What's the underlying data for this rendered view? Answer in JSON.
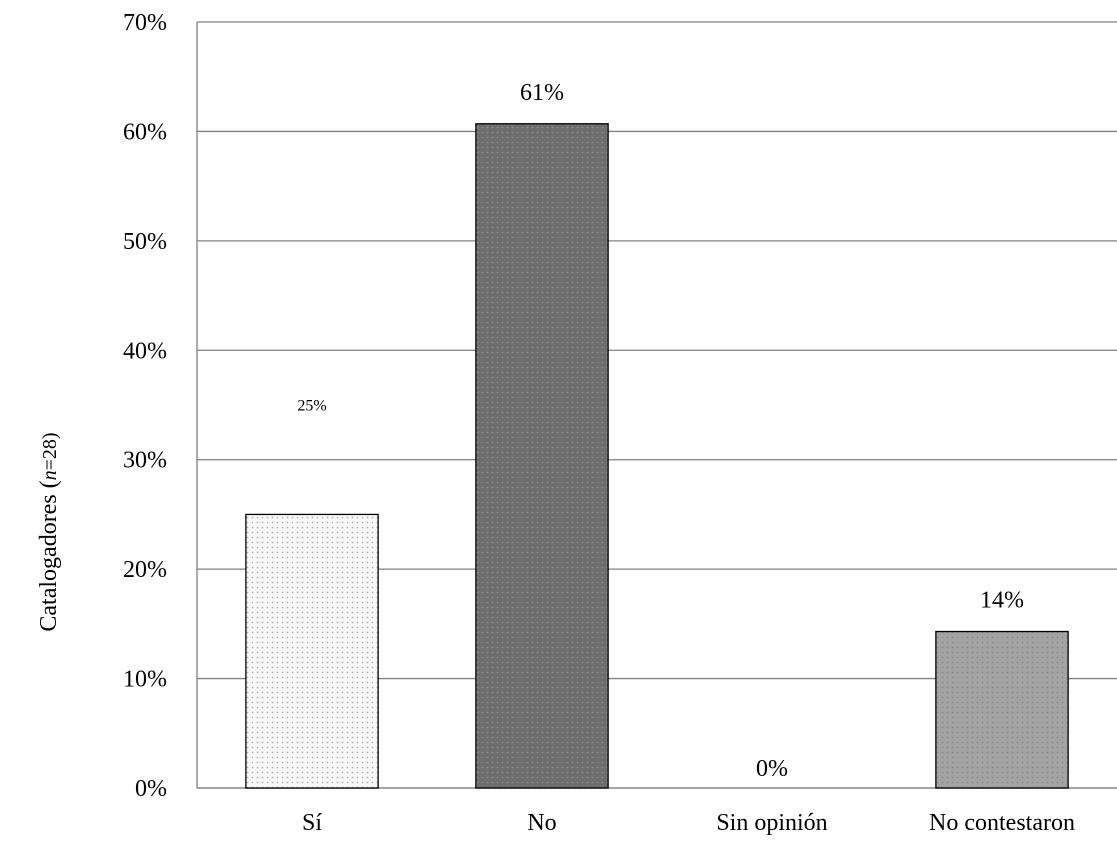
{
  "chart_data": {
    "type": "bar",
    "title": "",
    "xlabel": "",
    "ylabel": "Catalogadores (",
    "ylabel_italic": "n",
    "ylabel_suffix": "=28)",
    "categories": [
      "Sí",
      "No",
      "Sin opinión",
      "No contestaron"
    ],
    "values": [
      25,
      61,
      0,
      14
    ],
    "exact_values": [
      25.0,
      60.7,
      0,
      14.3
    ],
    "data_labels": [
      "25%",
      "61%",
      "0%",
      "14%"
    ],
    "ylim": [
      0,
      70
    ],
    "yticks": [
      "0%",
      "10%",
      "20%",
      "30%",
      "40%",
      "50%",
      "60%",
      "70%"
    ],
    "grid": true,
    "legend": "none",
    "bar_colors": [
      "#f0f0f0",
      "#707070",
      "#ffffff",
      "#a8a8a8"
    ],
    "pattern": "dotted"
  }
}
